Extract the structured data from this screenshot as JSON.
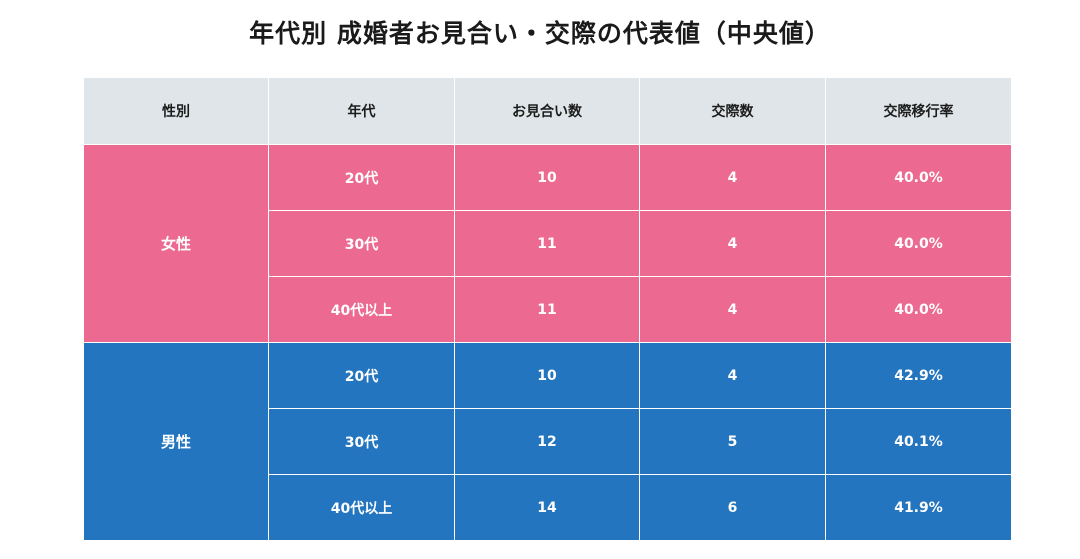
{
  "title": "年代別 成婚者お見合い・交際の代表値（中央値）",
  "colors": {
    "header_bg": "#dfe5e8",
    "female_bg": "#ec6a92",
    "male_bg": "#2375bf"
  },
  "chart_data": {
    "type": "table",
    "title": "年代別 成婚者お見合い・交際の代表値（中央値）",
    "columns": [
      "性別",
      "年代",
      "お見合い数",
      "交際数",
      "交際移行率"
    ],
    "groups": [
      {
        "label": "女性",
        "rows": [
          {
            "age": "20代",
            "omiai": "10",
            "kousai": "4",
            "rate": "40.0%"
          },
          {
            "age": "30代",
            "omiai": "11",
            "kousai": "4",
            "rate": "40.0%"
          },
          {
            "age": "40代以上",
            "omiai": "11",
            "kousai": "4",
            "rate": "40.0%"
          }
        ]
      },
      {
        "label": "男性",
        "rows": [
          {
            "age": "20代",
            "omiai": "10",
            "kousai": "4",
            "rate": "42.9%"
          },
          {
            "age": "30代",
            "omiai": "12",
            "kousai": "5",
            "rate": "40.1%"
          },
          {
            "age": "40代以上",
            "omiai": "14",
            "kousai": "6",
            "rate": "41.9%"
          }
        ]
      }
    ]
  }
}
